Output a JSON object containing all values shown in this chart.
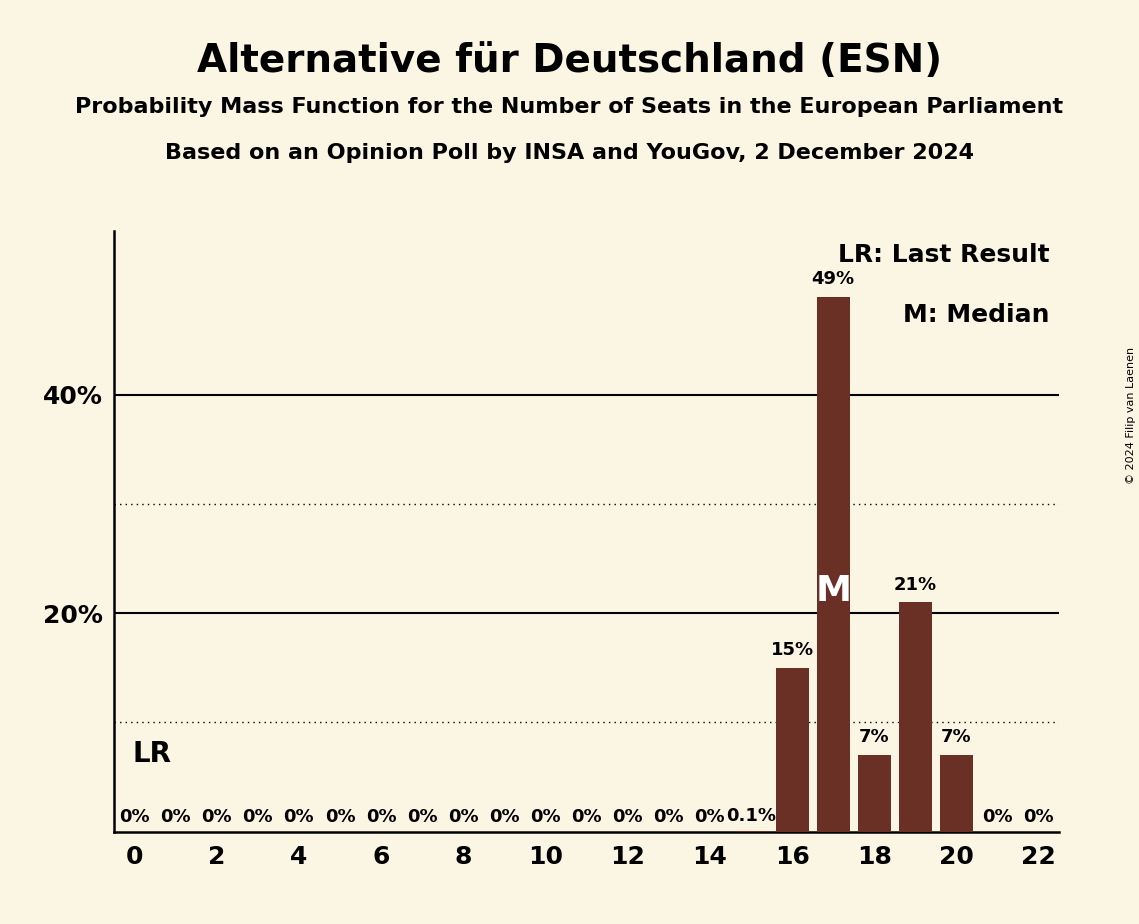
{
  "title": "Alternative für Deutschland (ESN)",
  "subtitle1": "Probability Mass Function for the Number of Seats in the European Parliament",
  "subtitle2": "Based on an Opinion Poll by INSA and YouGov, 2 December 2024",
  "copyright": "© 2024 Filip van Laenen",
  "background_color": "#FAF6E3",
  "bar_color": "#6B3025",
  "seats": [
    0,
    1,
    2,
    3,
    4,
    5,
    6,
    7,
    8,
    9,
    10,
    11,
    12,
    13,
    14,
    15,
    16,
    17,
    18,
    19,
    20,
    21,
    22
  ],
  "probabilities": [
    0,
    0,
    0,
    0,
    0,
    0,
    0,
    0,
    0,
    0,
    0,
    0,
    0,
    0,
    0,
    0.1,
    15,
    49,
    7,
    21,
    7,
    0,
    0
  ],
  "bar_labels": [
    "0%",
    "0%",
    "0%",
    "0%",
    "0%",
    "0%",
    "0%",
    "0%",
    "0%",
    "0%",
    "0%",
    "0%",
    "0%",
    "0%",
    "0%",
    "0.1%",
    "15%",
    "49%",
    "7%",
    "21%",
    "7%",
    "0%",
    "0%"
  ],
  "median_seat": 17,
  "lr_seat": 15,
  "lr_label": "LR",
  "median_label": "M",
  "legend_lr": "LR: Last Result",
  "legend_m": "M: Median",
  "xlim": [
    -0.5,
    22.5
  ],
  "ylim": [
    0,
    55
  ],
  "xtick_values": [
    0,
    2,
    4,
    6,
    8,
    10,
    12,
    14,
    16,
    18,
    20,
    22
  ],
  "ytick_solid": [
    20,
    40
  ],
  "ytick_dotted": [
    10,
    30
  ],
  "ytick_labels": {
    "20": "20%",
    "40": "40%"
  },
  "title_fontsize": 28,
  "subtitle_fontsize": 16,
  "bar_label_fontsize": 13,
  "tick_fontsize": 18,
  "lr_fontsize": 20,
  "legend_fontsize": 18,
  "median_fontsize": 26,
  "copyright_fontsize": 8
}
